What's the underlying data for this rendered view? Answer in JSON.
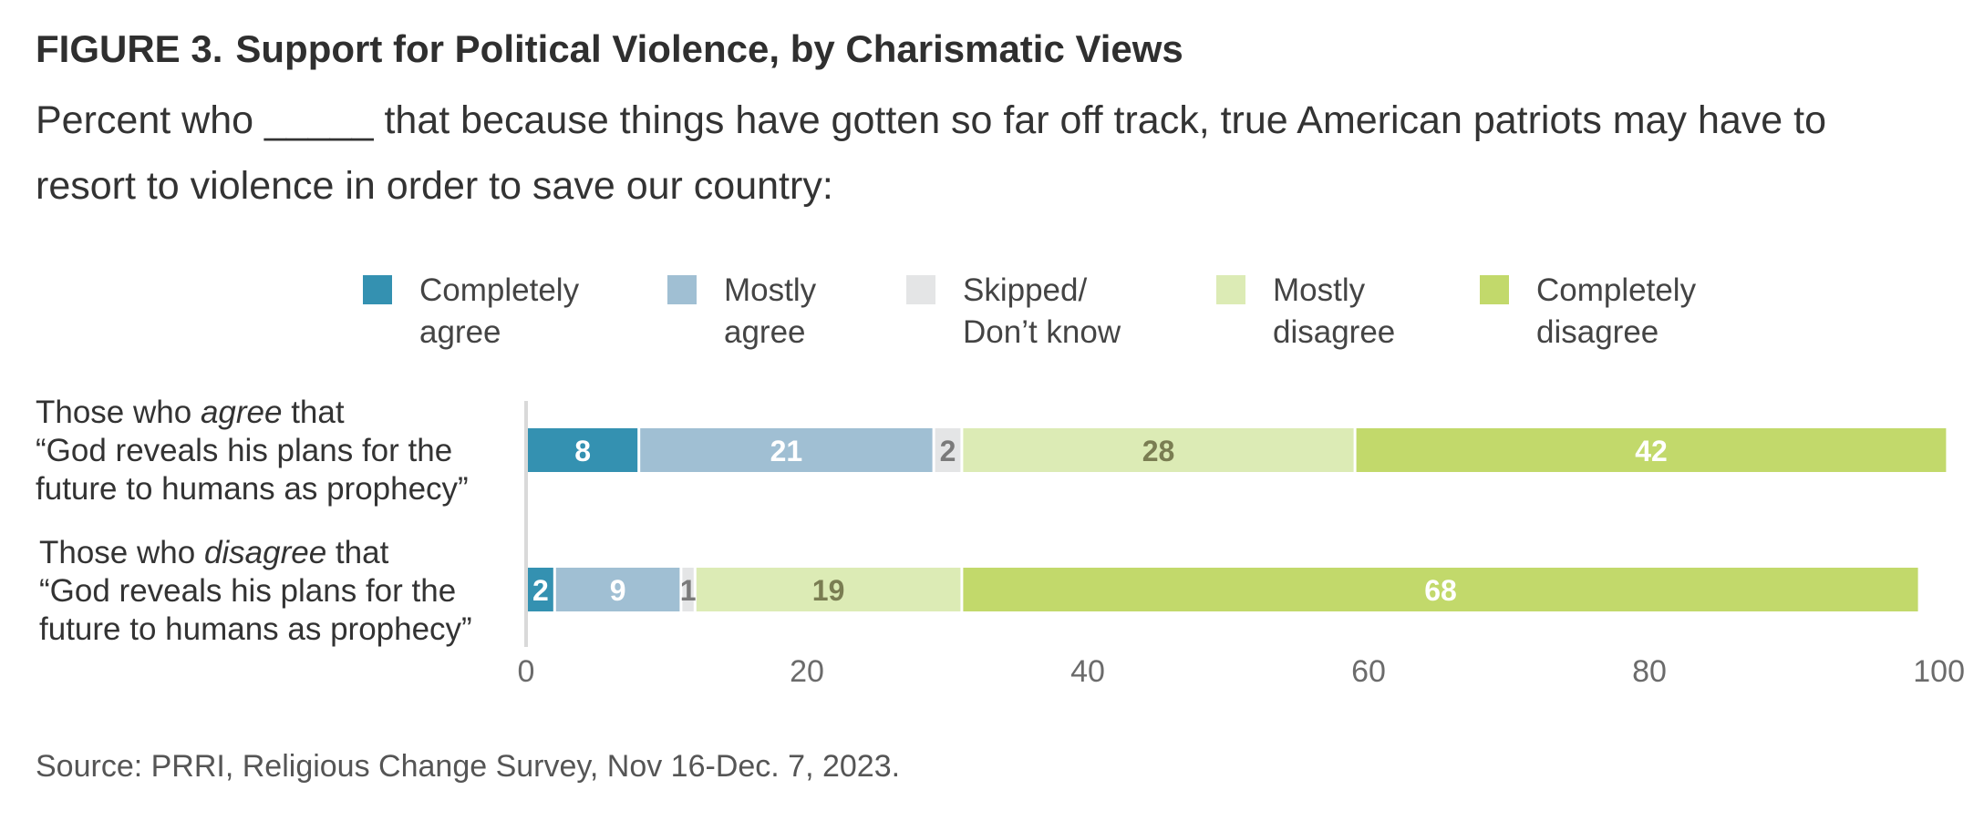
{
  "figure": {
    "number": "FIGURE 3.",
    "title": "Support for Political Violence, by Charismatic Views",
    "subtitle": "Percent who _____ that because things have gotten so far off track, true American patriots may have to resort to violence in order to save our country:",
    "source": "Source: PRRI, Religious Change Survey, Nov 16-Dec. 7, 2023."
  },
  "rows": [
    {
      "pre": "Those who ",
      "emph": "agree",
      "post": " that",
      "line2": "“God reveals his plans for the",
      "line3": "future to humans as prophecy”"
    },
    {
      "pre": "Those who ",
      "emph": "disagree",
      "post": " that",
      "line2": "“God reveals his plans for the",
      "line3": "future to humans as prophecy”"
    }
  ],
  "chart_data": {
    "type": "bar",
    "orientation": "horizontal",
    "stacked": true,
    "categories": [
      "Those who agree that “God reveals his plans for the future to humans as prophecy”",
      "Those who disagree that “God reveals his plans for the future to humans as prophecy”"
    ],
    "series": [
      {
        "name": "Completely agree",
        "legend": "Completely\nagree",
        "color": "#3491b1",
        "label_color": "#ffffff",
        "values": [
          8,
          2
        ]
      },
      {
        "name": "Mostly agree",
        "legend": "Mostly\nagree",
        "color": "#a0bfd3",
        "label_color": "#ffffff",
        "values": [
          21,
          9
        ]
      },
      {
        "name": "Skipped/ Don’t know",
        "legend": "Skipped/\nDon’t know",
        "color": "#e4e5e6",
        "label_color": "#7a7a7a",
        "values": [
          2,
          1
        ]
      },
      {
        "name": "Mostly disagree",
        "legend": "Mostly\ndisagree",
        "color": "#dcebb5",
        "label_color": "#7a7d52",
        "values": [
          28,
          19
        ]
      },
      {
        "name": "Completely disagree",
        "legend": "Completely\ndisagree",
        "color": "#c2d96b",
        "label_color": "#ffffff",
        "values": [
          42,
          68
        ]
      }
    ],
    "xlim": [
      0,
      100
    ],
    "xticks": [
      0,
      20,
      40,
      60,
      80,
      100
    ],
    "grid": false,
    "legend_position": "top"
  }
}
